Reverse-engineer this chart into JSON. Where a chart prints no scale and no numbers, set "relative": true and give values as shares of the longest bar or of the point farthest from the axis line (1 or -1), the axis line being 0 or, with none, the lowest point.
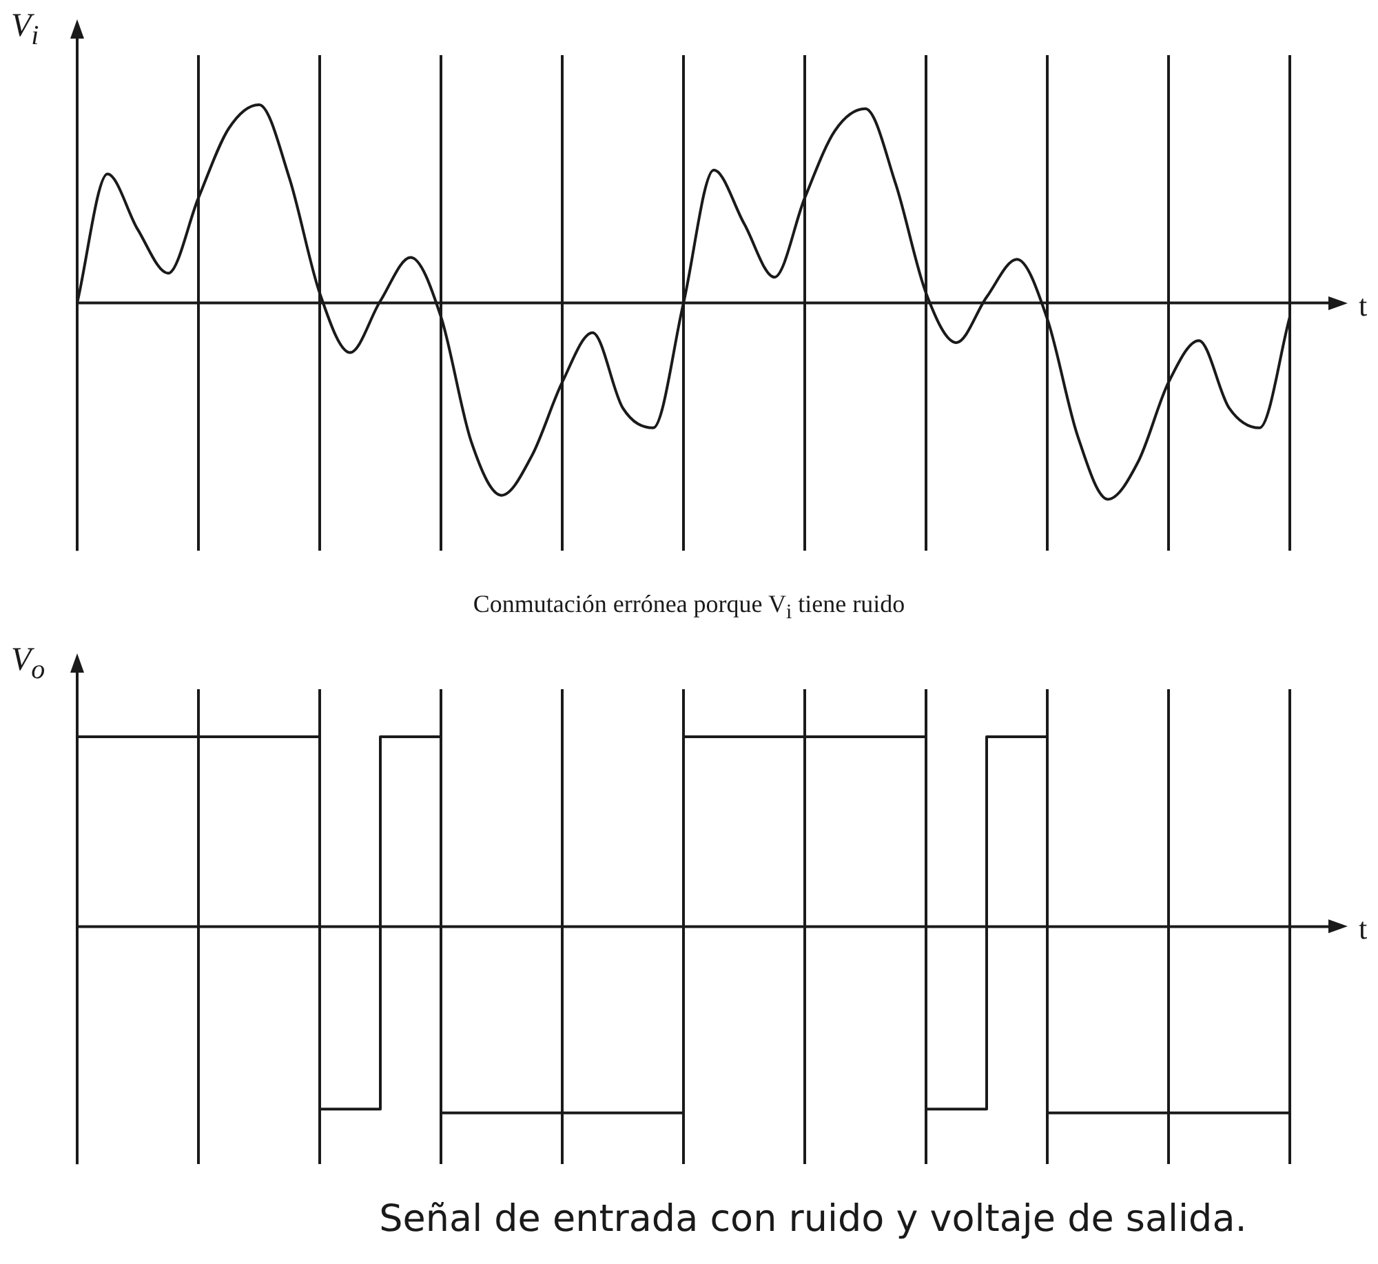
{
  "chart_data": [
    {
      "type": "line",
      "relative": true,
      "ylabel": "V$_{i}$",
      "xlabel": "t",
      "grid": "x",
      "marker": "none",
      "line_style": "solid",
      "annotations": [
        "Conmutación errónea porque V$_{i}$ tiene ruido"
      ],
      "categories": [
        null,
        null,
        null,
        null,
        null,
        null,
        null,
        null,
        null,
        null,
        null,
        null,
        null,
        null,
        null,
        null,
        null,
        null,
        null,
        null,
        null,
        null,
        null,
        null,
        null,
        null,
        null,
        null,
        null,
        null,
        null,
        null,
        null,
        null,
        null,
        null,
        null,
        null,
        null,
        null,
        null
      ],
      "series": [
        {
          "color": "#1a1a1a",
          "values": [
            0,
            0.65,
            0.37,
            0.15,
            0.53,
            0.88,
            1,
            0.63,
            0.05,
            -0.25,
            0.01,
            0.23,
            -0.07,
            -0.7,
            -0.97,
            -0.77,
            -0.4,
            -0.15,
            -0.53,
            -0.63,
            0,
            0.67,
            0.4,
            0.13,
            0.53,
            0.87,
            0.98,
            0.6,
            0.05,
            -0.2,
            0.03,
            0.22,
            -0.08,
            -0.67,
            -0.99,
            -0.8,
            -0.4,
            -0.19,
            -0.53,
            -0.63,
            -0.07
          ]
        }
      ]
    },
    {
      "type": "step",
      "relative": true,
      "ylabel": "V$_{o}$",
      "xlabel": "t",
      "grid": "x",
      "marker": "none",
      "line_style": "solid",
      "annotations": [
        "Señal de entrada con ruido y voltaje de salida."
      ],
      "categories": [
        null,
        null,
        null,
        null,
        null,
        null,
        null,
        null,
        null,
        null,
        null,
        null,
        null,
        null,
        null,
        null,
        null,
        null,
        null,
        null,
        null,
        null,
        null,
        null,
        null,
        null,
        null,
        null,
        null,
        null,
        null,
        null,
        null,
        null,
        null,
        null,
        null,
        null,
        null,
        null,
        null
      ],
      "series": [
        {
          "color": "#1a1a1a",
          "values": [
            1,
            1,
            1,
            1,
            1,
            1,
            1,
            1,
            -0.96,
            -0.96,
            1,
            1,
            -0.98,
            -0.98,
            -0.98,
            -0.98,
            -0.98,
            -0.98,
            -0.98,
            -0.98,
            1,
            1,
            1,
            1,
            1,
            1,
            1,
            1,
            -0.96,
            -0.96,
            1,
            1,
            -0.98,
            -0.98,
            -0.98,
            -0.98,
            -0.98,
            -0.98,
            -0.98,
            -0.98,
            -0.98
          ]
        }
      ]
    }
  ]
}
